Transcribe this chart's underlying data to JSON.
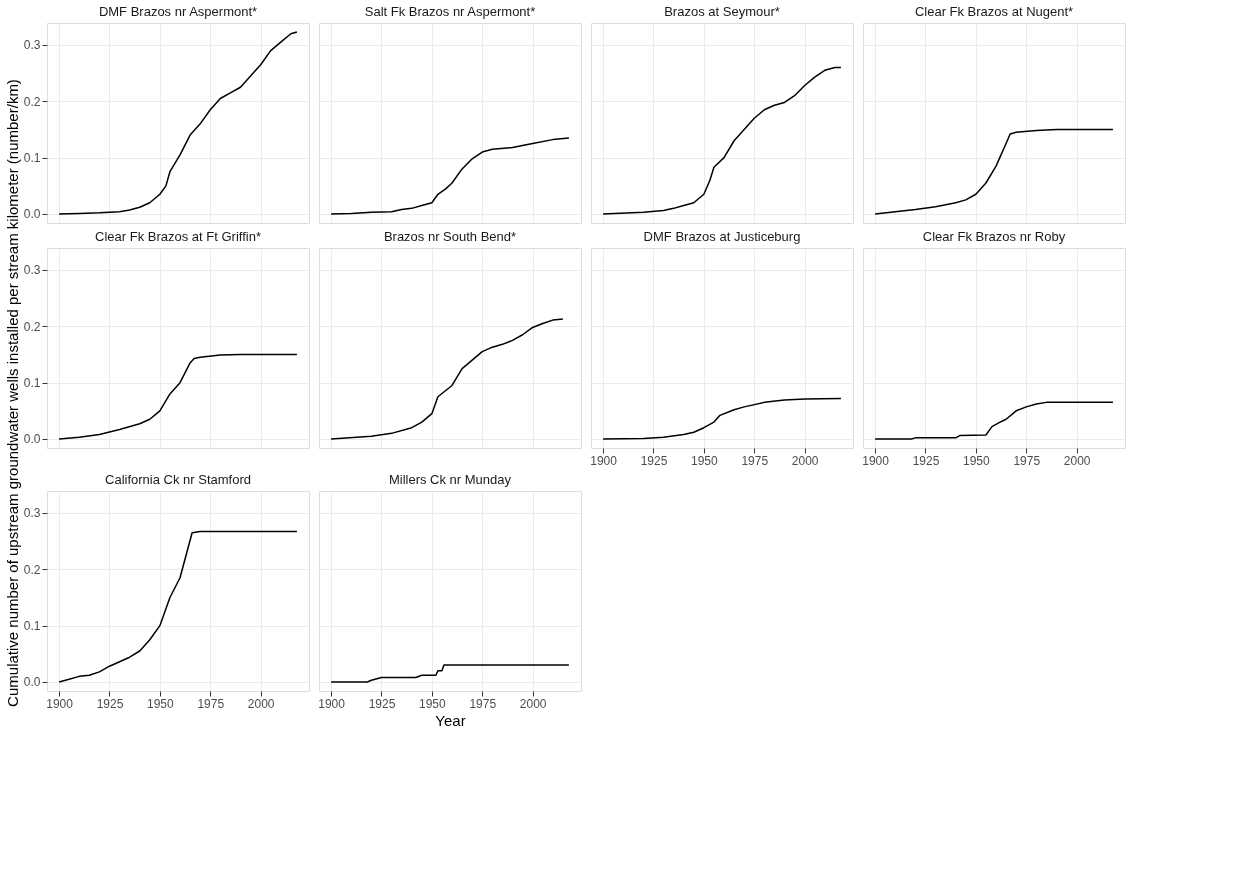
{
  "chart_data": [
    {
      "type": "line",
      "title": "DMF Brazos nr Aspermont*",
      "x": [
        1900,
        1910,
        1920,
        1930,
        1935,
        1940,
        1945,
        1950,
        1953,
        1955,
        1960,
        1965,
        1970,
        1975,
        1980,
        1985,
        1990,
        1995,
        2000,
        2005,
        2010,
        2015,
        2018
      ],
      "series": [
        {
          "color": "#000000",
          "values": [
            0,
            0.001,
            0.002,
            0.004,
            0.007,
            0.012,
            0.02,
            0.035,
            0.05,
            0.075,
            0.105,
            0.14,
            0.16,
            0.185,
            0.205,
            0.215,
            0.225,
            0.245,
            0.265,
            0.29,
            0.305,
            0.32,
            0.323
          ]
        }
      ],
      "xlim": [
        1894,
        2024
      ],
      "ylim": [
        -0.016,
        0.339
      ],
      "xticks": [
        1900,
        1925,
        1950,
        1975,
        2000
      ],
      "yticks": [
        {
          "value": 0,
          "label": "0.0"
        },
        {
          "value": 0.1,
          "label": "0.1"
        },
        {
          "value": 0.2,
          "label": "0.2"
        },
        {
          "value": 0.3,
          "label": "0.3"
        }
      ],
      "grid": true,
      "tick_labels": "y"
    },
    {
      "type": "line",
      "title": "Salt Fk Brazos nr Aspermont*",
      "x": [
        1900,
        1910,
        1920,
        1930,
        1935,
        1940,
        1945,
        1950,
        1953,
        1957,
        1960,
        1965,
        1970,
        1975,
        1980,
        1990,
        2000,
        2010,
        2018
      ],
      "series": [
        {
          "color": "#000000",
          "values": [
            0,
            0.001,
            0.003,
            0.004,
            0.008,
            0.01,
            0.015,
            0.02,
            0.035,
            0.045,
            0.055,
            0.08,
            0.098,
            0.11,
            0.115,
            0.118,
            0.125,
            0.132,
            0.135
          ]
        }
      ],
      "xlim": [
        1894,
        2024
      ],
      "ylim": [
        -0.016,
        0.339
      ],
      "xticks": [
        1900,
        1925,
        1950,
        1975,
        2000
      ],
      "yticks": [
        0,
        0.1,
        0.2,
        0.3
      ],
      "grid": true,
      "tick_labels": false
    },
    {
      "type": "line",
      "title": "Brazos at Seymour*",
      "x": [
        1900,
        1920,
        1930,
        1935,
        1940,
        1945,
        1950,
        1953,
        1955,
        1960,
        1965,
        1970,
        1975,
        1980,
        1985,
        1990,
        1995,
        2000,
        2005,
        2010,
        2015,
        2018
      ],
      "series": [
        {
          "color": "#000000",
          "values": [
            0,
            0.003,
            0.006,
            0.01,
            0.015,
            0.02,
            0.035,
            0.06,
            0.083,
            0.1,
            0.13,
            0.15,
            0.17,
            0.185,
            0.193,
            0.198,
            0.21,
            0.228,
            0.243,
            0.255,
            0.26,
            0.26
          ]
        }
      ],
      "xlim": [
        1894,
        2024
      ],
      "ylim": [
        -0.016,
        0.339
      ],
      "xticks": [
        1900,
        1925,
        1950,
        1975,
        2000
      ],
      "yticks": [
        0,
        0.1,
        0.2,
        0.3
      ],
      "grid": true,
      "tick_labels": false
    },
    {
      "type": "line",
      "title": "Clear Fk Brazos at Nugent*",
      "x": [
        1900,
        1910,
        1920,
        1930,
        1940,
        1945,
        1950,
        1955,
        1960,
        1965,
        1967,
        1970,
        1980,
        1990,
        2018
      ],
      "series": [
        {
          "color": "#000000",
          "values": [
            0,
            0.004,
            0.008,
            0.013,
            0.02,
            0.025,
            0.035,
            0.055,
            0.085,
            0.125,
            0.142,
            0.145,
            0.148,
            0.15,
            0.15
          ]
        }
      ],
      "xlim": [
        1894,
        2024
      ],
      "ylim": [
        -0.016,
        0.339
      ],
      "xticks": [
        1900,
        1925,
        1950,
        1975,
        2000
      ],
      "yticks": [
        0,
        0.1,
        0.2,
        0.3
      ],
      "grid": true,
      "tick_labels": false
    },
    {
      "type": "line",
      "title": "Clear Fk Brazos at Ft Griffin*",
      "ylabel": "Cumulative number of upstream groundwater wells installed per stream kilometer (number/km)",
      "x": [
        1900,
        1910,
        1920,
        1930,
        1940,
        1945,
        1950,
        1955,
        1960,
        1965,
        1967,
        1970,
        1980,
        1990,
        2018
      ],
      "series": [
        {
          "color": "#000000",
          "values": [
            0,
            0.003,
            0.008,
            0.017,
            0.027,
            0.035,
            0.05,
            0.08,
            0.1,
            0.135,
            0.143,
            0.145,
            0.149,
            0.15,
            0.15
          ]
        }
      ],
      "xlim": [
        1894,
        2024
      ],
      "ylim": [
        -0.016,
        0.339
      ],
      "xticks": [
        1900,
        1925,
        1950,
        1975,
        2000
      ],
      "yticks": [
        {
          "value": 0,
          "label": "0.0"
        },
        {
          "value": 0.1,
          "label": "0.1"
        },
        {
          "value": 0.2,
          "label": "0.2"
        },
        {
          "value": 0.3,
          "label": "0.3"
        }
      ],
      "grid": true,
      "tick_labels": "y"
    },
    {
      "type": "line",
      "title": "Brazos nr South Bend*",
      "x": [
        1900,
        1920,
        1930,
        1940,
        1945,
        1950,
        1953,
        1960,
        1965,
        1970,
        1975,
        1980,
        1985,
        1990,
        1995,
        2000,
        2005,
        2010,
        2015
      ],
      "series": [
        {
          "color": "#000000",
          "values": [
            0,
            0.005,
            0.01,
            0.02,
            0.03,
            0.045,
            0.075,
            0.095,
            0.125,
            0.14,
            0.155,
            0.163,
            0.168,
            0.175,
            0.185,
            0.198,
            0.205,
            0.211,
            0.213
          ]
        }
      ],
      "xlim": [
        1894,
        2024
      ],
      "ylim": [
        -0.016,
        0.339
      ],
      "xticks": [
        1900,
        1925,
        1950,
        1975,
        2000
      ],
      "yticks": [
        0,
        0.1,
        0.2,
        0.3
      ],
      "grid": true,
      "tick_labels": false
    },
    {
      "type": "line",
      "title": "DMF Brazos at Justiceburg",
      "x": [
        1900,
        1920,
        1930,
        1940,
        1945,
        1950,
        1955,
        1958,
        1965,
        1970,
        1980,
        1990,
        2000,
        2018
      ],
      "series": [
        {
          "color": "#000000",
          "values": [
            0,
            0.001,
            0.003,
            0.008,
            0.012,
            0.02,
            0.03,
            0.042,
            0.052,
            0.057,
            0.065,
            0.069,
            0.071,
            0.072
          ]
        }
      ],
      "xlim": [
        1894,
        2024
      ],
      "ylim": [
        -0.016,
        0.339
      ],
      "xticks": [
        1900,
        1925,
        1950,
        1975,
        2000
      ],
      "yticks": [
        0,
        0.1,
        0.2,
        0.3
      ],
      "grid": true,
      "tick_labels": "x"
    },
    {
      "type": "line",
      "title": "Clear Fk Brazos nr Roby",
      "x": [
        1900,
        1918,
        1920,
        1940,
        1942,
        1955,
        1958,
        1962,
        1965,
        1970,
        1975,
        1980,
        1985,
        2018
      ],
      "series": [
        {
          "color": "#000000",
          "values": [
            0,
            0,
            0.002,
            0.002,
            0.006,
            0.007,
            0.022,
            0.03,
            0.035,
            0.05,
            0.057,
            0.062,
            0.065,
            0.065
          ]
        }
      ],
      "xlim": [
        1894,
        2024
      ],
      "ylim": [
        -0.016,
        0.339
      ],
      "xticks": [
        1900,
        1925,
        1950,
        1975,
        2000
      ],
      "yticks": [
        0,
        0.1,
        0.2,
        0.3
      ],
      "grid": true,
      "tick_labels": "x"
    },
    {
      "type": "line",
      "title": "California Ck nr Stamford",
      "x": [
        1900,
        1905,
        1910,
        1915,
        1920,
        1925,
        1930,
        1935,
        1940,
        1945,
        1950,
        1955,
        1960,
        1963,
        1966,
        1970,
        2018
      ],
      "series": [
        {
          "color": "#000000",
          "values": [
            0,
            0.005,
            0.01,
            0.012,
            0.018,
            0.028,
            0.036,
            0.044,
            0.055,
            0.075,
            0.1,
            0.15,
            0.185,
            0.225,
            0.265,
            0.267,
            0.267
          ]
        }
      ],
      "xlim": [
        1894,
        2024
      ],
      "ylim": [
        -0.016,
        0.339
      ],
      "xticks": [
        1900,
        1925,
        1950,
        1975,
        2000
      ],
      "yticks": [
        {
          "value": 0,
          "label": "0.0"
        },
        {
          "value": 0.1,
          "label": "0.1"
        },
        {
          "value": 0.2,
          "label": "0.2"
        },
        {
          "value": 0.3,
          "label": "0.3"
        }
      ],
      "grid": true
    },
    {
      "type": "line",
      "title": "Millers Ck nr Munday",
      "xlabel": "Year",
      "x": [
        1900,
        1918,
        1920,
        1925,
        1942,
        1945,
        1952,
        1953,
        1955,
        1956,
        2018
      ],
      "series": [
        {
          "color": "#000000",
          "values": [
            0,
            0,
            0.003,
            0.008,
            0.008,
            0.012,
            0.012,
            0.02,
            0.02,
            0.03,
            0.03
          ]
        }
      ],
      "xlim": [
        1894,
        2024
      ],
      "ylim": [
        -0.016,
        0.339
      ],
      "xticks": [
        1900,
        1925,
        1950,
        1975,
        2000
      ],
      "yticks": [
        0,
        0.1,
        0.2,
        0.3
      ],
      "grid": true,
      "tick_labels": "x"
    }
  ]
}
